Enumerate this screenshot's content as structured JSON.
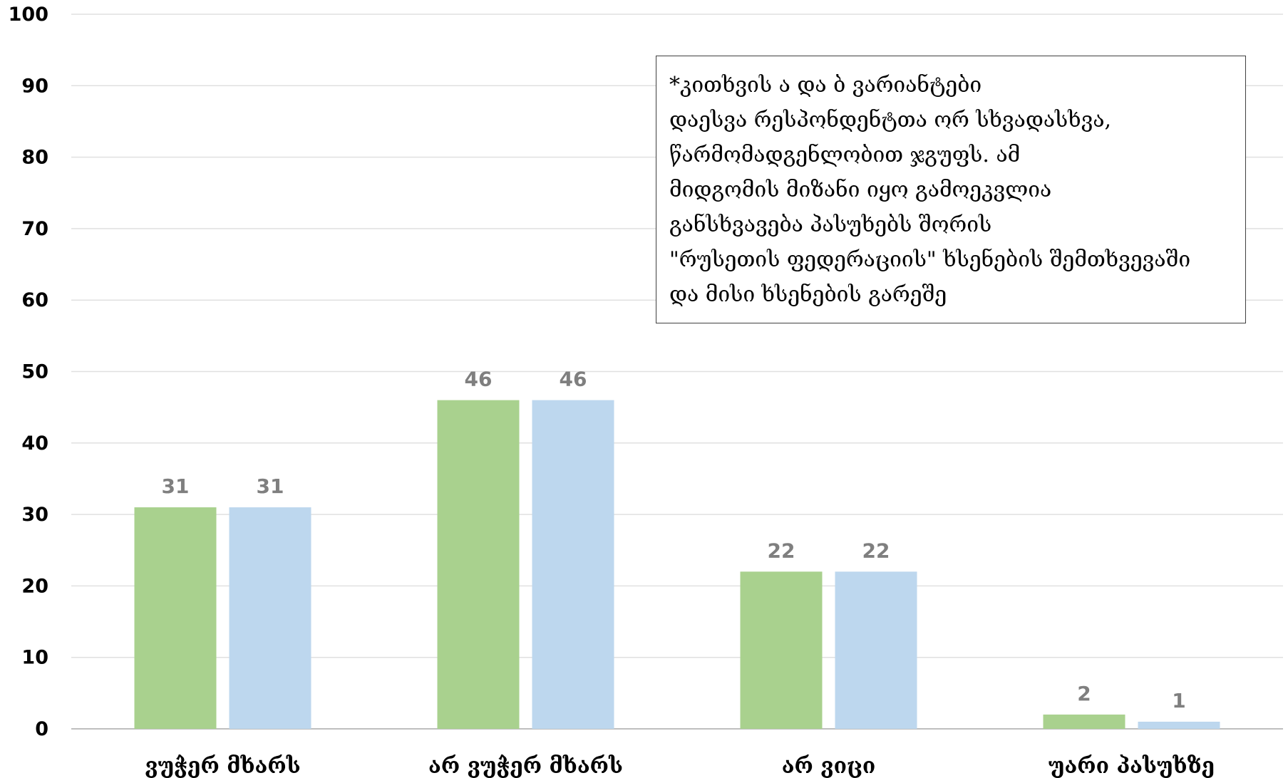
{
  "chart_data": {
    "type": "bar",
    "categories": [
      "ვუჭერ მხარს",
      "არ ვუჭერ მხარს",
      "არ ვიცი",
      "უარი პასუხზე"
    ],
    "series": [
      {
        "values": [
          31,
          46,
          22,
          2
        ],
        "color": "#a9d18e"
      },
      {
        "values": [
          31,
          46,
          22,
          1
        ],
        "color": "#bdd7ee"
      }
    ],
    "ylim": [
      0,
      100
    ],
    "yticks": [
      "0",
      "10",
      "20",
      "30",
      "40",
      "50",
      "60",
      "70",
      "80",
      "90",
      "100"
    ],
    "grid": true,
    "annotation": [
      "*კითხვის ა და ბ ვარიანტები",
      "დაესვა რესპონდენტთა ორ სხვადასხვა,",
      " წარმომადგენლობით ჯგუფს. ამ",
      " მიდგომის მიზანი იყო გამოეკვლია",
      "განსხვავება პასუხებს შორის",
      "\"რუსეთის ფედერაციის\" ხსენების შემთხვევაში",
      " და მისი ხსენების გარეშე"
    ]
  }
}
